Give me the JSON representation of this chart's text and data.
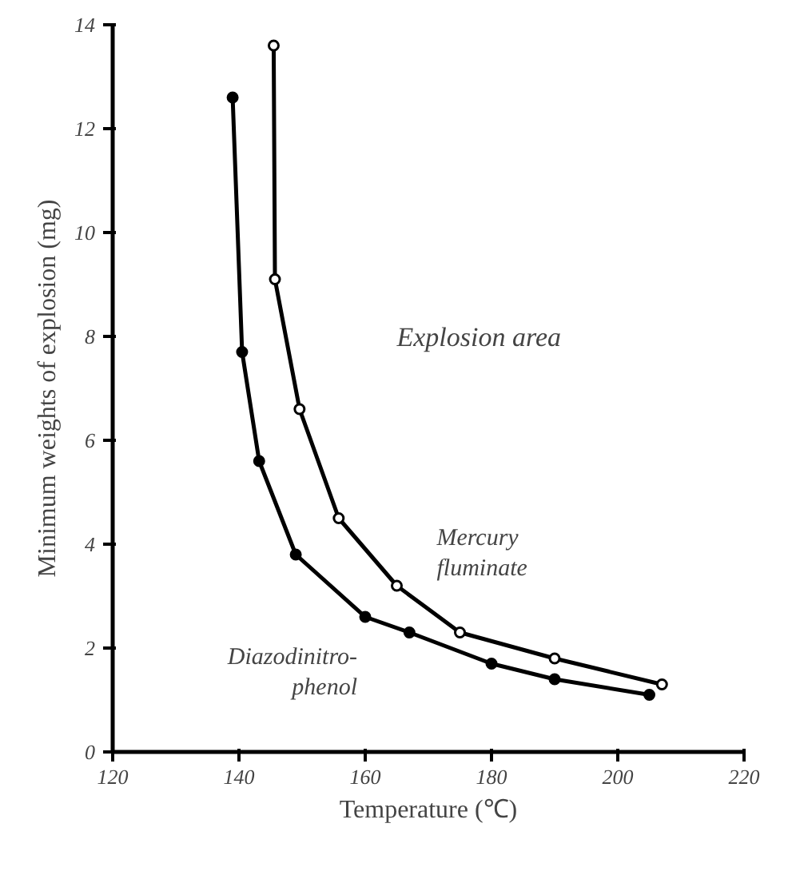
{
  "chart_data": {
    "type": "line",
    "xlabel": "Temperature (℃)",
    "ylabel": "Minimum weights of explosion (mg)",
    "xlim": [
      120,
      220
    ],
    "xticks": [
      120,
      140,
      160,
      180,
      200,
      220
    ],
    "ylim": [
      0,
      14
    ],
    "yticks": [
      0,
      2,
      4,
      6,
      8,
      10,
      12,
      14
    ],
    "grid": false,
    "marker": "circle",
    "line_style": "solid",
    "annotations": [
      "Explosion area"
    ],
    "series": [
      {
        "name": "Mercury\nfluminate",
        "color": "#000000",
        "x": [
          145.5,
          145.7,
          149.6,
          155.8,
          165,
          175,
          190,
          207
        ],
        "values": [
          13.6,
          9.1,
          6.6,
          4.5,
          3.2,
          2.3,
          1.8,
          1.3
        ]
      },
      {
        "name": "Diazodinitro-\nphenol",
        "color": "#000000",
        "x": [
          139,
          140.5,
          143.2,
          149,
          160,
          167,
          180,
          190,
          205
        ],
        "values": [
          12.6,
          7.7,
          5.6,
          3.8,
          2.6,
          2.3,
          1.7,
          1.4,
          1.1
        ]
      }
    ]
  }
}
